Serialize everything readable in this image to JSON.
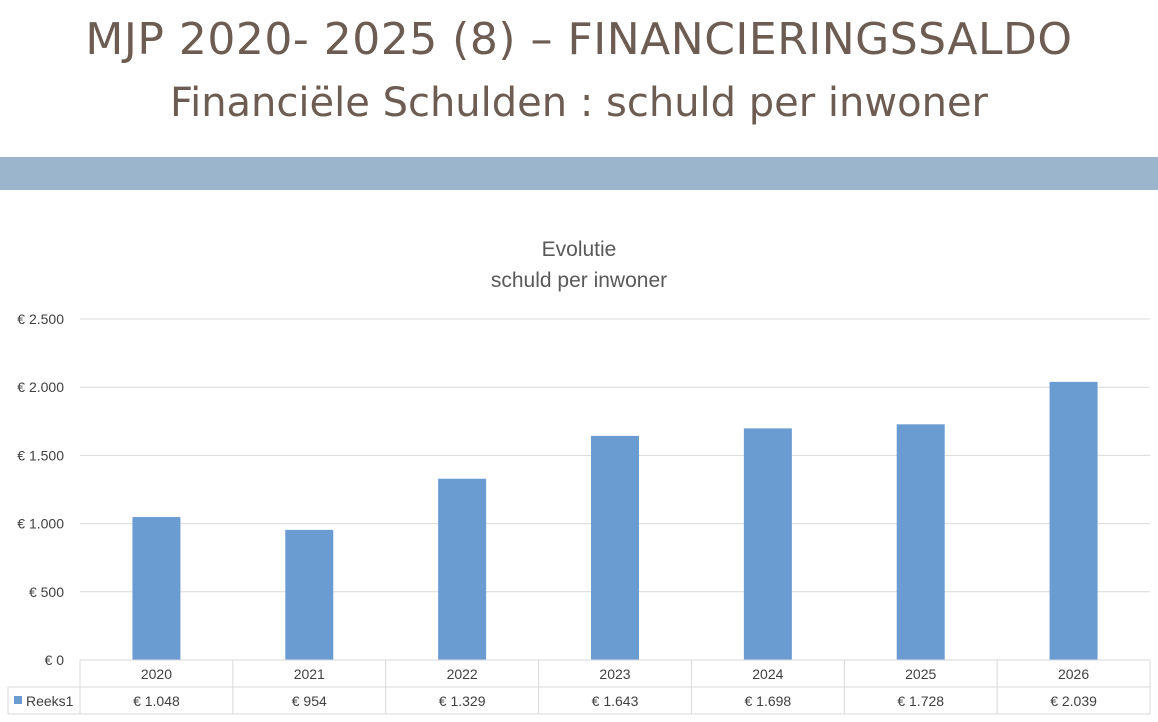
{
  "slide": {
    "title": "MJP 2020- 2025 (8) – FINANCIERINGSSALDO",
    "subtitle": "Financiële Schulden : schuld per inwoner"
  },
  "colors": {
    "title": "#6d5c51",
    "band": "#9bb5cc",
    "bar": "#6a9bd1",
    "grid": "#d9d9d9"
  },
  "chart_data": {
    "type": "bar",
    "title_lines": [
      "Evolutie",
      "schuld per inwoner"
    ],
    "categories": [
      "2020",
      "2021",
      "2022",
      "2023",
      "2024",
      "2025",
      "2026"
    ],
    "series": [
      {
        "name": "Reeks1",
        "values": [
          1048,
          954,
          1329,
          1643,
          1698,
          1728,
          2039
        ],
        "value_labels": [
          "€ 1.048",
          "€ 954",
          "€ 1.329",
          "€ 1.643",
          "€ 1.698",
          "€ 1.728",
          "€ 2.039"
        ]
      }
    ],
    "ylim": [
      0,
      2500
    ],
    "yticks": [
      0,
      500,
      1000,
      1500,
      2000,
      2500
    ],
    "ytick_labels": [
      "€ 0",
      "€ 500",
      "€ 1.000",
      "€ 1.500",
      "€ 2.000",
      "€ 2.500"
    ],
    "grid": true,
    "legend": "data-table"
  }
}
